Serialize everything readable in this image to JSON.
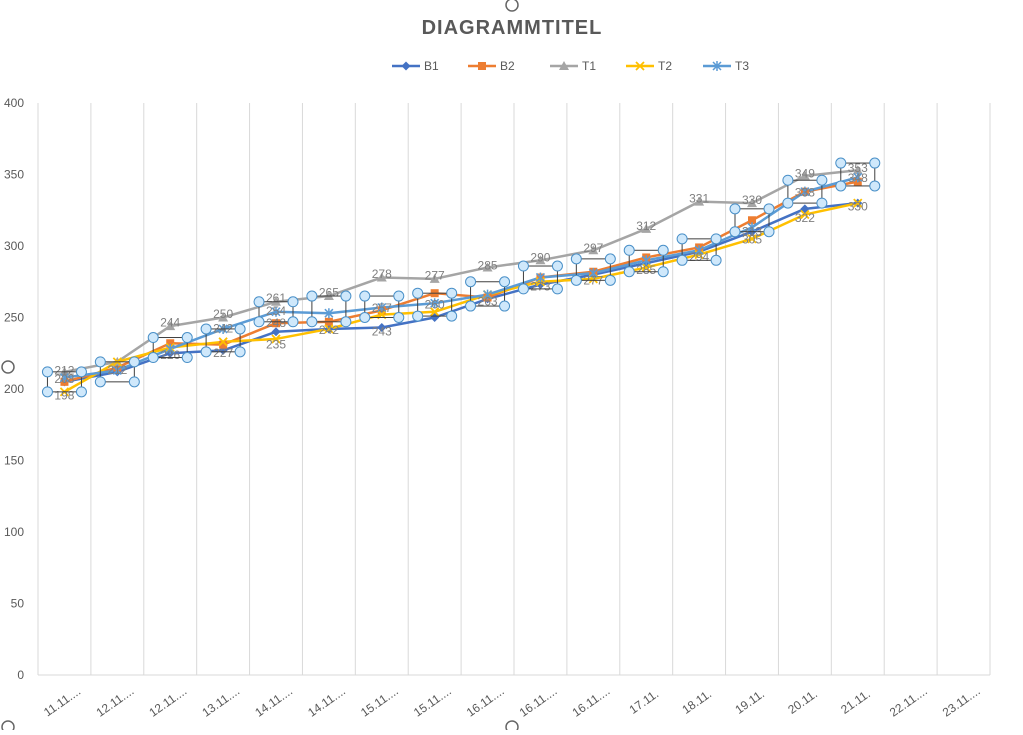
{
  "chart_data": {
    "type": "line",
    "title": "DIAGRAMMTITEL",
    "xlabel": "",
    "ylabel": "",
    "ylim": [
      0,
      400
    ],
    "yticks": [
      0,
      50,
      100,
      150,
      200,
      250,
      300,
      350,
      400
    ],
    "grid": "vertical",
    "legend_position": "top",
    "categories": [
      "11.11....",
      "12.11....",
      "12.11....",
      "13.11....",
      "14.11....",
      "14.11....",
      "15.11....",
      "15.11....",
      "16.11....",
      "16.11....",
      "16.11....",
      "17.11.",
      "18.11.",
      "19.11.",
      "20.11.",
      "21.11.",
      "22.11....",
      "23.11...."
    ],
    "series": [
      {
        "name": "B1",
        "color": "#4472c4",
        "marker": "diamond",
        "values": [
          205,
          212,
          225,
          227,
          240,
          242,
          243,
          250,
          263,
          273,
          280,
          288,
          296,
          310,
          326,
          330,
          null,
          null
        ]
      },
      {
        "name": "B2",
        "color": "#ed7d31",
        "marker": "square",
        "values": [
          205,
          215,
          232,
          231,
          246,
          247,
          255,
          267,
          264,
          278,
          282,
          292,
          299,
          318,
          338,
          345,
          null,
          null
        ]
      },
      {
        "name": "T1",
        "color": "#a5a5a5",
        "marker": "triangle",
        "values": [
          212,
          219,
          244,
          250,
          261,
          265,
          278,
          277,
          285,
          290,
          297,
          312,
          331,
          330,
          349,
          353,
          null,
          null
        ]
      },
      {
        "name": "T2",
        "color": "#ffc000",
        "marker": "x",
        "values": [
          198,
          219,
          229,
          233,
          235,
          242,
          252,
          254,
          266,
          275,
          277,
          285,
          294,
          305,
          322,
          330,
          null,
          null
        ]
      },
      {
        "name": "T3",
        "color": "#5b9bd5",
        "marker": "star",
        "values": [
          208,
          213,
          228,
          242,
          254,
          253,
          257,
          260,
          266,
          278,
          281,
          290,
          297,
          313,
          338,
          348,
          null,
          null
        ]
      }
    ],
    "data_labels": [
      {
        "text": "212"
      },
      {
        "text": "208"
      },
      {
        "text": "198"
      },
      {
        "text": "212"
      },
      {
        "text": "244"
      },
      {
        "text": "226"
      },
      {
        "text": "250"
      },
      {
        "text": "242"
      },
      {
        "text": "227"
      },
      {
        "text": "261"
      },
      {
        "text": "254"
      },
      {
        "text": "248"
      },
      {
        "text": "235"
      },
      {
        "text": "265"
      },
      {
        "text": "242"
      },
      {
        "text": "278"
      },
      {
        "text": "257"
      },
      {
        "text": "243"
      },
      {
        "text": "277"
      },
      {
        "text": "260"
      },
      {
        "text": "285"
      },
      {
        "text": "263"
      },
      {
        "text": "290"
      },
      {
        "text": "273"
      },
      {
        "text": "297"
      },
      {
        "text": "277"
      },
      {
        "text": "312"
      },
      {
        "text": "285"
      },
      {
        "text": "331"
      },
      {
        "text": "294"
      },
      {
        "text": "330"
      },
      {
        "text": "305"
      },
      {
        "text": "313"
      },
      {
        "text": "349"
      },
      {
        "text": "338"
      },
      {
        "text": "322"
      },
      {
        "text": "353"
      },
      {
        "text": "348"
      },
      {
        "text": "330"
      }
    ]
  }
}
